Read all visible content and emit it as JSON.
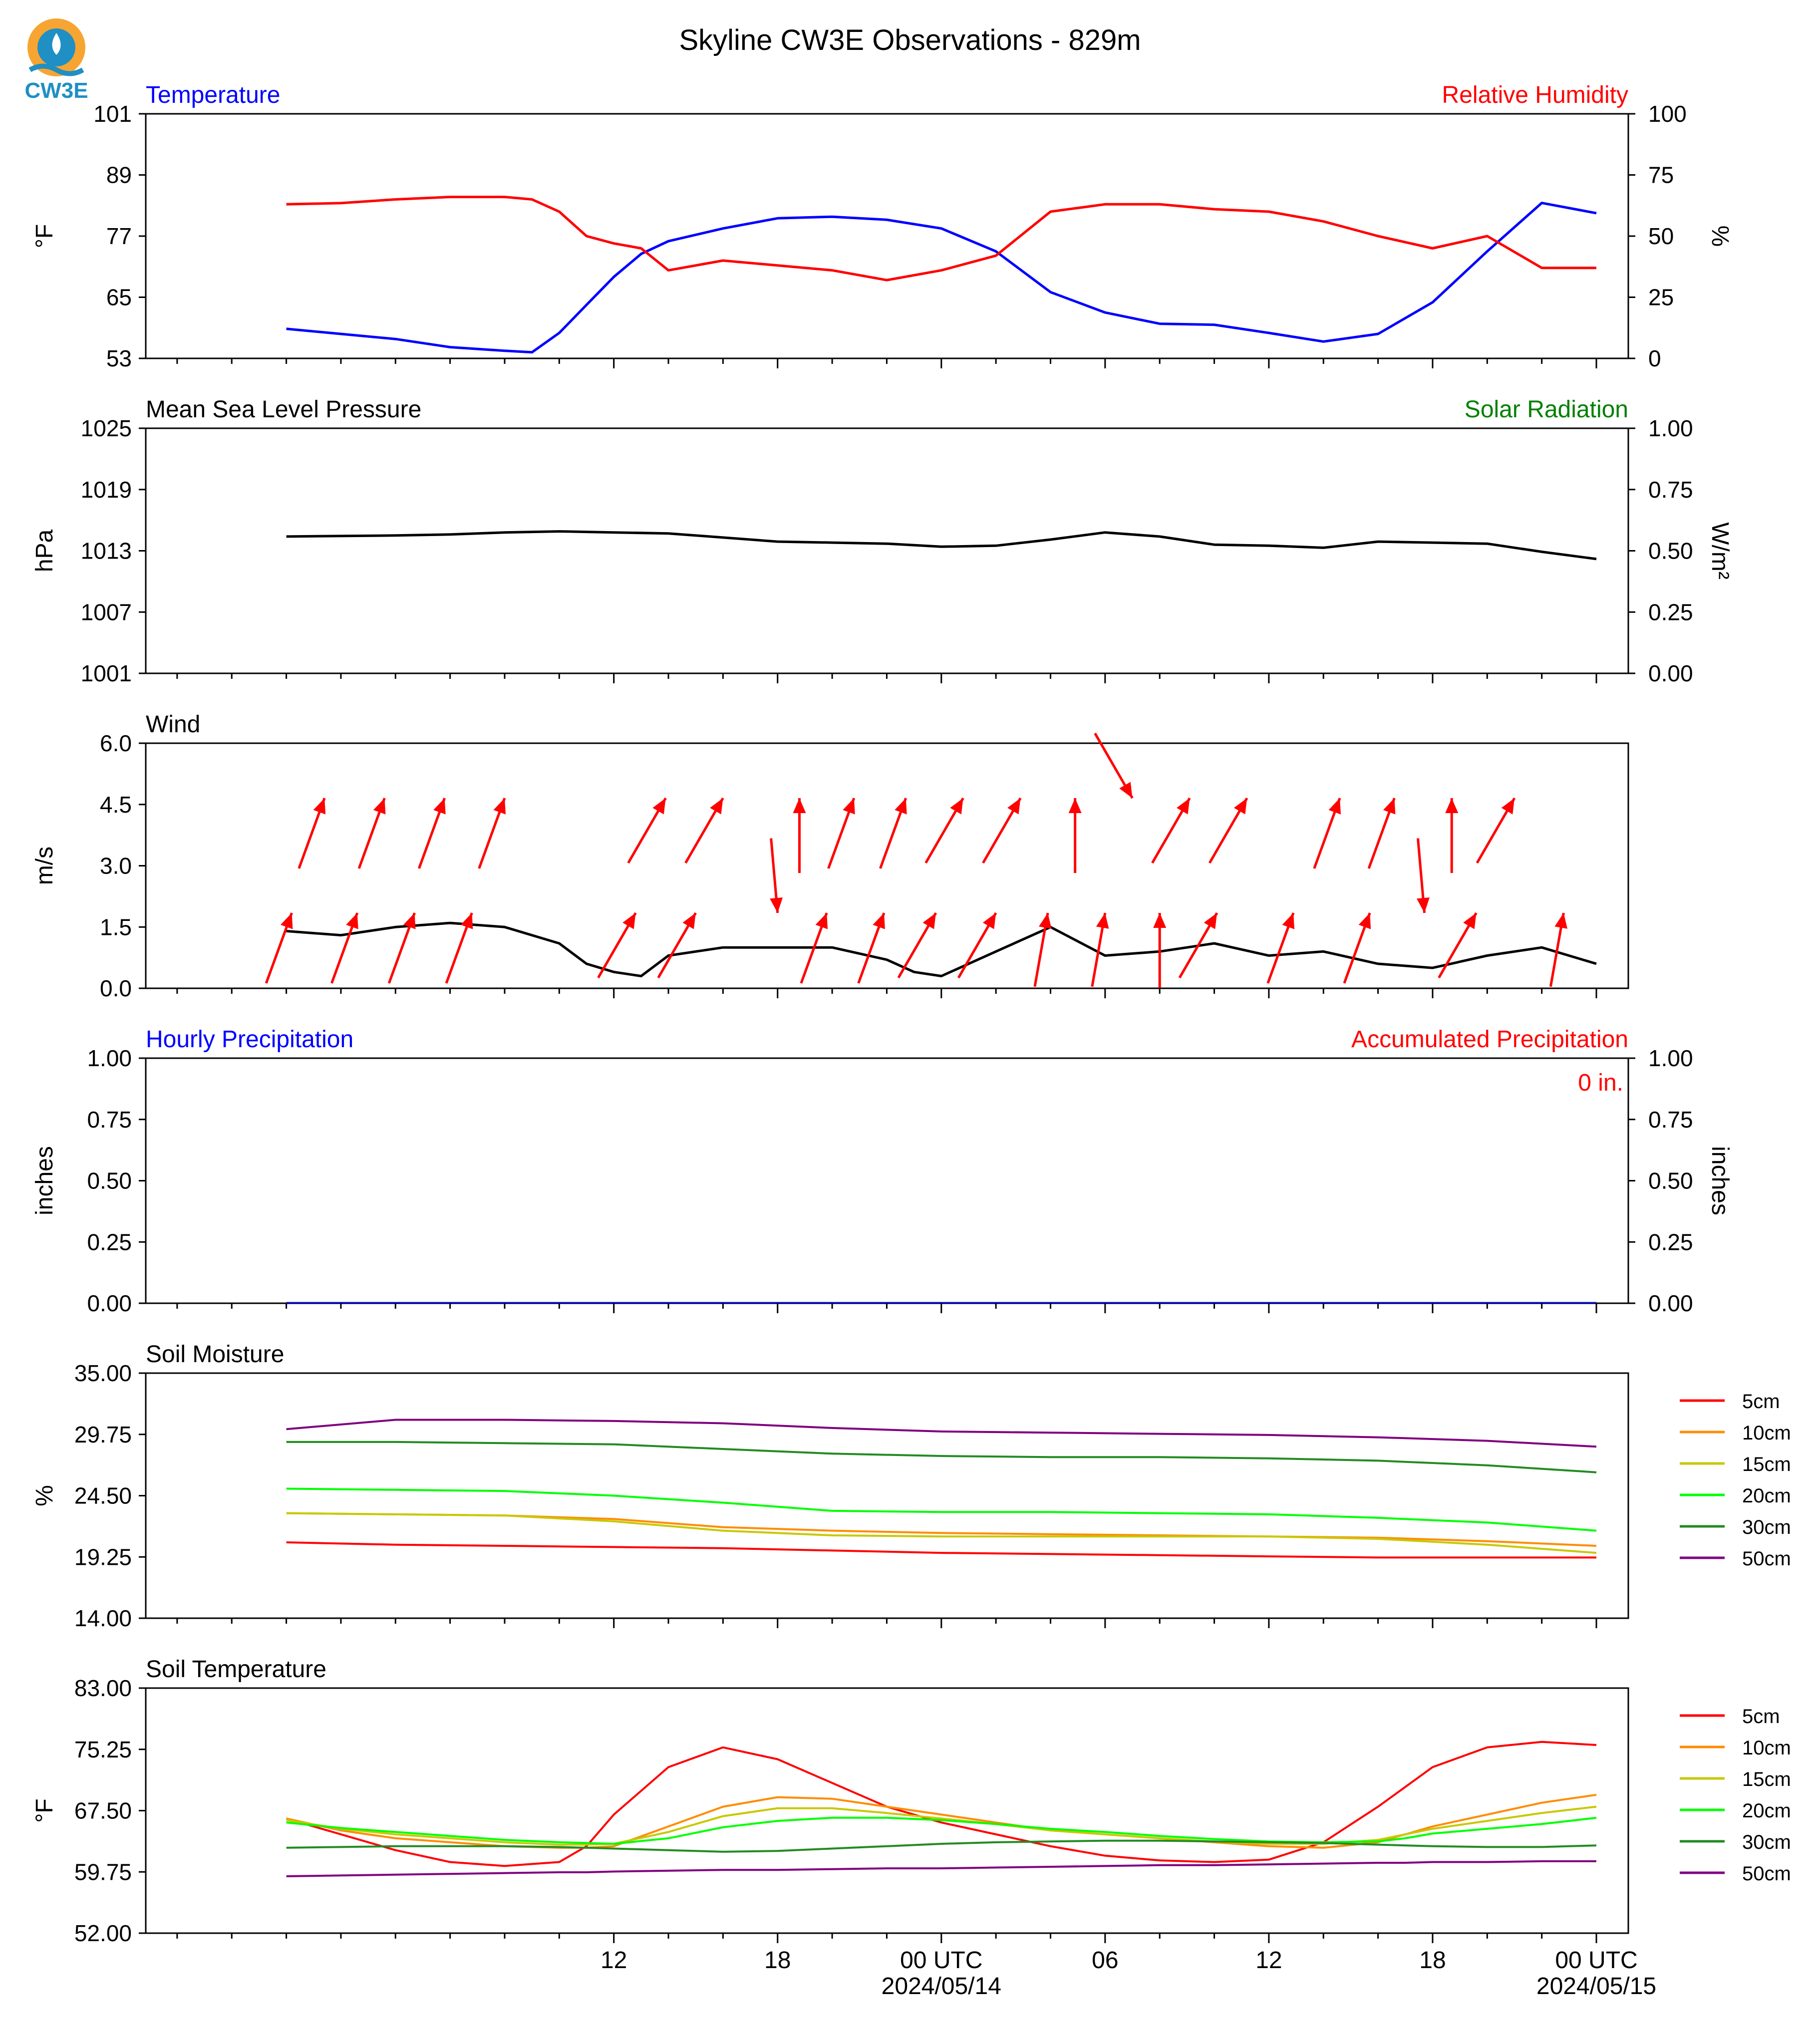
{
  "page_title": "Skyline CW3E Observations - 829m",
  "logo_text": "CW3E",
  "x_axis": {
    "ticks": [
      "12",
      "18",
      "00 UTC",
      "06",
      "12",
      "18",
      "00 UTC"
    ],
    "dates": [
      "2024/05/14",
      "2024/05/15"
    ]
  },
  "colors": {
    "temperature": "#0000ff",
    "humidity": "#ff0000",
    "pressure": "#000000",
    "solar": "#008000",
    "wind_arrows": "#ff0000",
    "soil_5cm": "#ff0000",
    "soil_10cm": "#ff8c00",
    "soil_15cm": "#c8c800",
    "soil_20cm": "#00ff00",
    "soil_30cm": "#228b22",
    "soil_50cm": "#800080"
  },
  "chart_data": [
    {
      "type": "line",
      "title": "Temperature",
      "right_title": "Relative Humidity",
      "ylabel": "°F",
      "ylabel_right": "%",
      "ylim": [
        53,
        101
      ],
      "ylim_right": [
        0,
        100
      ],
      "yticks": [
        "101",
        "89",
        "77",
        "65",
        "53"
      ],
      "yticks_right": [
        "100",
        "75",
        "50",
        "25",
        "0"
      ],
      "x_hours": [
        0,
        2,
        4,
        6,
        8,
        9,
        10,
        11,
        12,
        13,
        14,
        16,
        18,
        20,
        22,
        24,
        26,
        28,
        30,
        32,
        34,
        36,
        38,
        40,
        42,
        44,
        46,
        48
      ],
      "series": [
        {
          "name": "Temperature",
          "values": [
            58.8,
            57.8,
            56.8,
            55.2,
            54.5,
            54.2,
            58,
            63.5,
            69,
            73.5,
            76,
            78.5,
            80.5,
            80.8,
            80.2,
            78.5,
            74,
            66,
            62,
            59.8,
            59.6,
            58,
            56.3,
            57.8,
            64,
            74,
            83.5,
            81.5
          ]
        },
        {
          "name": "Relative Humidity",
          "values": [
            63,
            63.5,
            65,
            66,
            66,
            65,
            60,
            50,
            47,
            45,
            36,
            40,
            38,
            36,
            32,
            36,
            42,
            60,
            63,
            63,
            61,
            60,
            56,
            50,
            45,
            50,
            37,
            37
          ]
        }
      ]
    },
    {
      "type": "line",
      "title": "Mean Sea Level Pressure",
      "right_title": "Solar Radiation",
      "ylabel": "hPa",
      "ylabel_right": "W/m²",
      "ylim": [
        1001,
        1025
      ],
      "ylim_right": [
        0,
        1
      ],
      "yticks": [
        "1025",
        "1019",
        "1013",
        "1007",
        "1001"
      ],
      "yticks_right": [
        "1.00",
        "0.75",
        "0.50",
        "0.25",
        "0.00"
      ],
      "x_hours": [
        0,
        4,
        6,
        8,
        10,
        12,
        14,
        16,
        18,
        20,
        22,
        24,
        26,
        28,
        30,
        32,
        34,
        36,
        38,
        40,
        42,
        44,
        46,
        48
      ],
      "series": [
        {
          "name": "Mean Sea Level Pressure",
          "values": [
            1014.4,
            1014.5,
            1014.6,
            1014.8,
            1014.9,
            1014.8,
            1014.7,
            1014.3,
            1013.9,
            1013.8,
            1013.7,
            1013.4,
            1013.5,
            1014.1,
            1014.8,
            1014.4,
            1013.6,
            1013.5,
            1013.3,
            1013.9,
            1013.8,
            1013.7,
            1012.9,
            1012.2
          ]
        }
      ]
    },
    {
      "type": "line",
      "title": "Wind",
      "ylabel": "m/s",
      "ylim": [
        0,
        6
      ],
      "yticks": [
        "6.0",
        "4.5",
        "3.0",
        "1.5",
        "0.0"
      ],
      "x_hours": [
        0,
        2,
        4,
        6,
        8,
        10,
        11,
        12,
        13,
        14,
        16,
        18,
        20,
        22,
        23,
        24,
        26,
        28,
        30,
        32,
        34,
        36,
        38,
        40,
        42,
        44,
        46,
        48
      ],
      "series": [
        {
          "name": "Wind speed",
          "values": [
            1.4,
            1.3,
            1.5,
            1.6,
            1.5,
            1.1,
            0.6,
            0.4,
            0.3,
            0.8,
            1.0,
            1.0,
            1.0,
            0.7,
            0.4,
            0.3,
            0.9,
            1.5,
            0.8,
            0.9,
            1.1,
            0.8,
            0.9,
            0.6,
            0.5,
            0.8,
            1.0,
            0.6
          ]
        }
      ],
      "wind_arrows_hours": [
        0.2,
        1.4,
        2.6,
        3.6,
        4.7,
        5.8,
        6.8,
        8.0,
        12.8,
        13.9,
        15.0,
        16.0,
        18.0,
        18.8,
        19.8,
        20.8,
        21.9,
        22.7,
        23.8,
        24.8,
        26.0,
        26.9,
        27.9,
        28.9,
        30.0,
        31.0,
        32.0,
        33.1,
        34.1,
        35.2,
        36.9,
        38.6,
        39.7,
        40.6,
        41.7,
        42.7,
        43.6,
        45.0,
        46.8
      ],
      "wind_arrows_dir_deg": [
        200,
        200,
        200,
        200,
        200,
        200,
        200,
        200,
        210,
        210,
        210,
        210,
        355,
        180,
        200,
        200,
        200,
        200,
        210,
        210,
        210,
        210,
        190,
        180,
        190,
        330,
        180,
        210,
        210,
        210,
        200,
        200,
        200,
        200,
        355,
        180,
        210,
        210,
        190
      ]
    },
    {
      "type": "line",
      "title": "Hourly Precipitation",
      "right_title": "Accumulated Precipitation",
      "annotation": "0 in.",
      "ylabel": "inches",
      "ylabel_right": "inches",
      "ylim": [
        0,
        1
      ],
      "yticks": [
        "1.00",
        "0.75",
        "0.50",
        "0.25",
        "0.00"
      ],
      "yticks_right": [
        "1.00",
        "0.75",
        "0.50",
        "0.25",
        "0.00"
      ],
      "x_hours": [
        0,
        48
      ],
      "series": [
        {
          "name": "Hourly Precipitation",
          "values": [
            0,
            0
          ]
        }
      ]
    },
    {
      "type": "line",
      "title": "Soil Moisture",
      "ylabel": "%",
      "ylim": [
        14,
        35
      ],
      "yticks": [
        "35.00",
        "29.75",
        "24.50",
        "19.25",
        "14.00"
      ],
      "x_hours": [
        0,
        4,
        8,
        12,
        16,
        20,
        24,
        28,
        32,
        36,
        40,
        44,
        48
      ],
      "series": [
        {
          "name": "5cm",
          "values": [
            20.5,
            20.3,
            20.2,
            20.1,
            20.0,
            19.8,
            19.6,
            19.5,
            19.4,
            19.3,
            19.2,
            19.2,
            19.2
          ]
        },
        {
          "name": "10cm",
          "values": [
            23.0,
            22.9,
            22.8,
            22.5,
            21.8,
            21.5,
            21.3,
            21.2,
            21.1,
            21.0,
            20.9,
            20.6,
            20.2
          ]
        },
        {
          "name": "15cm",
          "values": [
            23.0,
            22.9,
            22.8,
            22.3,
            21.5,
            21.1,
            21.0,
            21.0,
            21.0,
            21.0,
            20.8,
            20.3,
            19.6
          ]
        },
        {
          "name": "20cm",
          "values": [
            25.1,
            25.0,
            24.9,
            24.5,
            23.9,
            23.2,
            23.1,
            23.1,
            23.0,
            22.9,
            22.6,
            22.2,
            21.5
          ]
        },
        {
          "name": "30cm",
          "values": [
            29.1,
            29.1,
            29.0,
            28.9,
            28.5,
            28.1,
            27.9,
            27.8,
            27.8,
            27.7,
            27.5,
            27.1,
            26.5
          ]
        },
        {
          "name": "50cm",
          "values": [
            30.2,
            31.0,
            31.0,
            30.9,
            30.7,
            30.3,
            30.0,
            29.9,
            29.8,
            29.7,
            29.5,
            29.2,
            28.7
          ]
        }
      ]
    },
    {
      "type": "line",
      "title": "Soil Temperature",
      "ylabel": "°F",
      "ylim": [
        52,
        83
      ],
      "yticks": [
        "83.00",
        "75.25",
        "67.50",
        "59.75",
        "52.00"
      ],
      "x_hours": [
        0,
        2,
        4,
        6,
        8,
        10,
        11,
        12,
        14,
        16,
        18,
        20,
        22,
        24,
        26,
        28,
        30,
        32,
        34,
        36,
        38,
        40,
        41,
        42,
        44,
        46,
        47,
        48
      ],
      "series": [
        {
          "name": "5cm",
          "values": [
            66.5,
            64.5,
            62.5,
            61.0,
            60.5,
            61,
            63,
            67,
            73,
            75.5,
            74,
            71,
            68,
            66,
            64.5,
            63,
            61.8,
            61.2,
            61.0,
            61.3,
            63.5,
            68,
            70.5,
            73,
            75.5,
            76.2,
            76.0,
            75.8
          ]
        },
        {
          "name": "10cm",
          "values": [
            66.5,
            65.0,
            64.0,
            63.5,
            63.0,
            62.8,
            62.8,
            63.0,
            65.5,
            68,
            69.2,
            69.0,
            68.0,
            67.0,
            66.0,
            65.0,
            64.5,
            64.0,
            63.5,
            63.0,
            62.8,
            63.5,
            64.5,
            65.5,
            67.0,
            68.5,
            69.0,
            69.5
          ]
        },
        {
          "name": "15cm",
          "values": [
            66.3,
            65.2,
            64.5,
            64.0,
            63.5,
            63.2,
            63.2,
            63.3,
            64.8,
            66.8,
            67.8,
            67.8,
            67.2,
            66.5,
            65.8,
            65.0,
            64.5,
            64.0,
            63.6,
            63.3,
            63.3,
            63.8,
            64.5,
            65.2,
            66.2,
            67.2,
            67.6,
            68.0
          ]
        },
        {
          "name": "20cm",
          "values": [
            66.0,
            65.3,
            64.8,
            64.3,
            63.8,
            63.5,
            63.4,
            63.3,
            64.0,
            65.4,
            66.2,
            66.6,
            66.6,
            66.3,
            65.8,
            65.2,
            64.8,
            64.3,
            63.9,
            63.6,
            63.5,
            63.6,
            64.0,
            64.6,
            65.2,
            65.8,
            66.2,
            66.6
          ]
        },
        {
          "name": "30cm",
          "values": [
            62.8,
            62.9,
            63.0,
            63.0,
            63.0,
            62.9,
            62.8,
            62.7,
            62.5,
            62.3,
            62.4,
            62.7,
            63.0,
            63.3,
            63.5,
            63.6,
            63.7,
            63.7,
            63.6,
            63.5,
            63.4,
            63.2,
            63.1,
            63.0,
            62.9,
            62.9,
            63.0,
            63.1
          ]
        },
        {
          "name": "50cm",
          "values": [
            59.2,
            59.3,
            59.4,
            59.5,
            59.6,
            59.7,
            59.7,
            59.8,
            59.9,
            60.0,
            60.0,
            60.1,
            60.2,
            60.2,
            60.3,
            60.4,
            60.5,
            60.6,
            60.6,
            60.7,
            60.8,
            60.9,
            60.9,
            61.0,
            61.0,
            61.1,
            61.1,
            61.1
          ]
        }
      ]
    }
  ]
}
